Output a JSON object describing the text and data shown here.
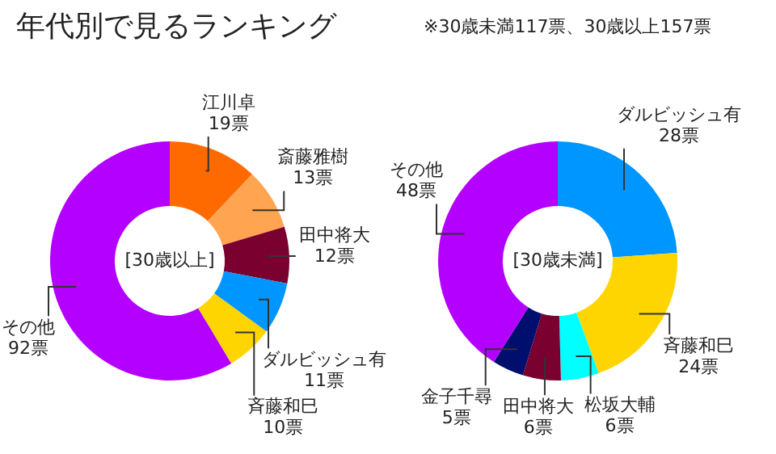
{
  "chart_data": [
    {
      "type": "donut",
      "title": "年代別で見るランキング",
      "annotations": [
        "[30歳以上]"
      ],
      "categories": [
        "江川卓",
        "斎藤雅樹",
        "田中将大",
        "ダルビッシュ有",
        "斉藤和巳",
        "その他"
      ],
      "values": [
        19,
        13,
        12,
        11,
        10,
        92
      ],
      "value_labels": [
        "19票",
        "13票",
        "12票",
        "11票",
        "10票",
        "92票"
      ],
      "colors": [
        "#ff6a00",
        "#ffa552",
        "#7a0030",
        "#0096ff",
        "#ffd500",
        "#b400ff"
      ],
      "legend": false
    },
    {
      "type": "donut",
      "subtitle": "※30歳未満117票、30歳以上157票",
      "annotations": [
        "[30歳未満]"
      ],
      "categories": [
        "ダルビッシュ有",
        "斉藤和巳",
        "松坂大輔",
        "田中将大",
        "金子千尋",
        "その他"
      ],
      "values": [
        28,
        24,
        6,
        6,
        5,
        48
      ],
      "value_labels": [
        "28票",
        "24票",
        "6票",
        "6票",
        "5票",
        "48票"
      ],
      "colors": [
        "#0096ff",
        "#ffd500",
        "#00ffff",
        "#7a0030",
        "#000e6e",
        "#b400ff"
      ],
      "legend": false
    }
  ]
}
